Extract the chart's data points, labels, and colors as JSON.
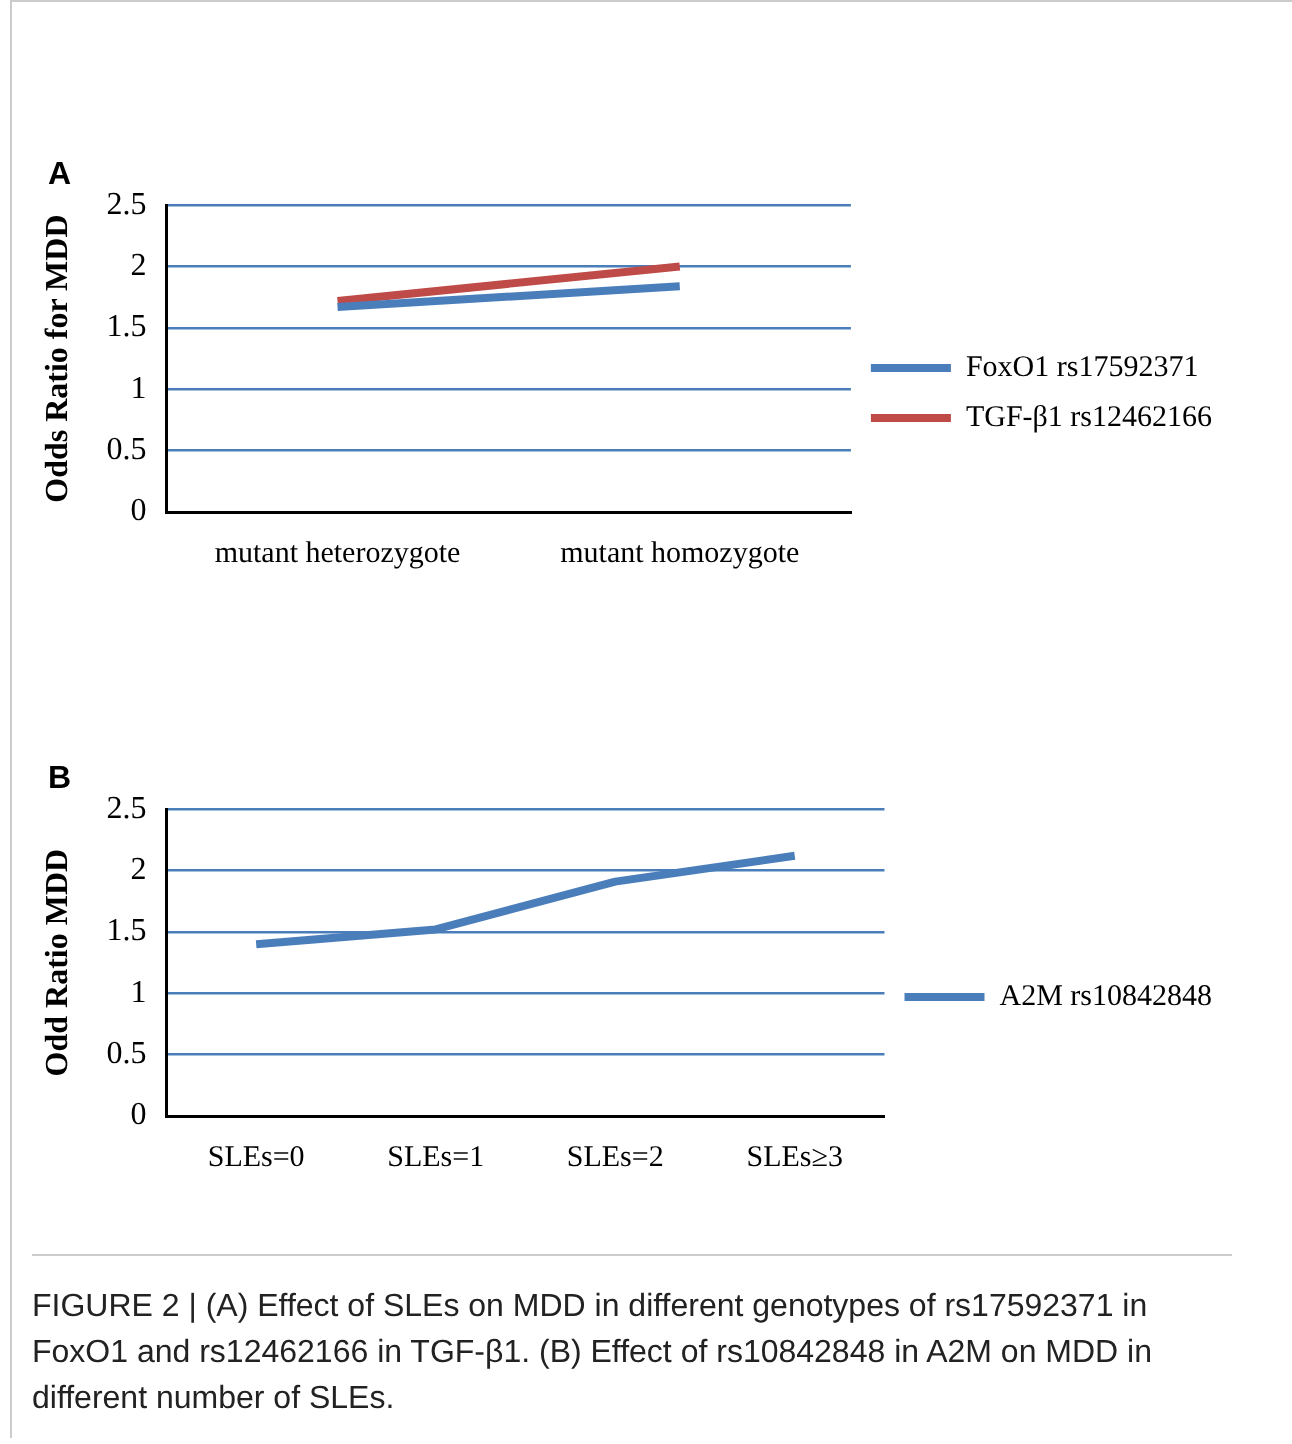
{
  "chart_data": [
    {
      "type": "line",
      "title": "A",
      "ylabel": "Odds Ratio for MDD",
      "categories": [
        "mutant heterozygote",
        "mutant homozygote"
      ],
      "series": [
        {
          "name": "FoxO1 rs17592371",
          "color": "#4a7ebb",
          "values": [
            1.67,
            1.84
          ]
        },
        {
          "name": "TGF-β1 rs12462166",
          "color": "#be4b48",
          "values": [
            1.72,
            2.0
          ]
        }
      ],
      "ylim": [
        0,
        2.5
      ],
      "yticks": [
        0,
        0.5,
        1,
        1.5,
        2,
        2.5
      ],
      "grid": "y",
      "legend": "right",
      "marker": "none"
    },
    {
      "type": "line",
      "title": "B",
      "ylabel": "Odd Ratio MDD",
      "categories": [
        "SLEs=0",
        "SLEs=1",
        "SLEs=2",
        "SLEs≥3"
      ],
      "series": [
        {
          "name": "A2M rs10842848",
          "color": "#4a7ebb",
          "values": [
            1.4,
            1.52,
            1.91,
            2.12
          ]
        }
      ],
      "ylim": [
        0,
        2.5
      ],
      "yticks": [
        0,
        0.5,
        1,
        1.5,
        2,
        2.5
      ],
      "grid": "y",
      "legend": "right",
      "marker": "none",
      "annotations": [
        "FIGURE 2 | (A) Effect of SLEs on MDD in different genotypes of rs17592371 in FoxO1 and rs12462166 in TGF-β1. (B) Effect of rs10842848 in A2M on MDD in different number of SLEs."
      ]
    }
  ]
}
